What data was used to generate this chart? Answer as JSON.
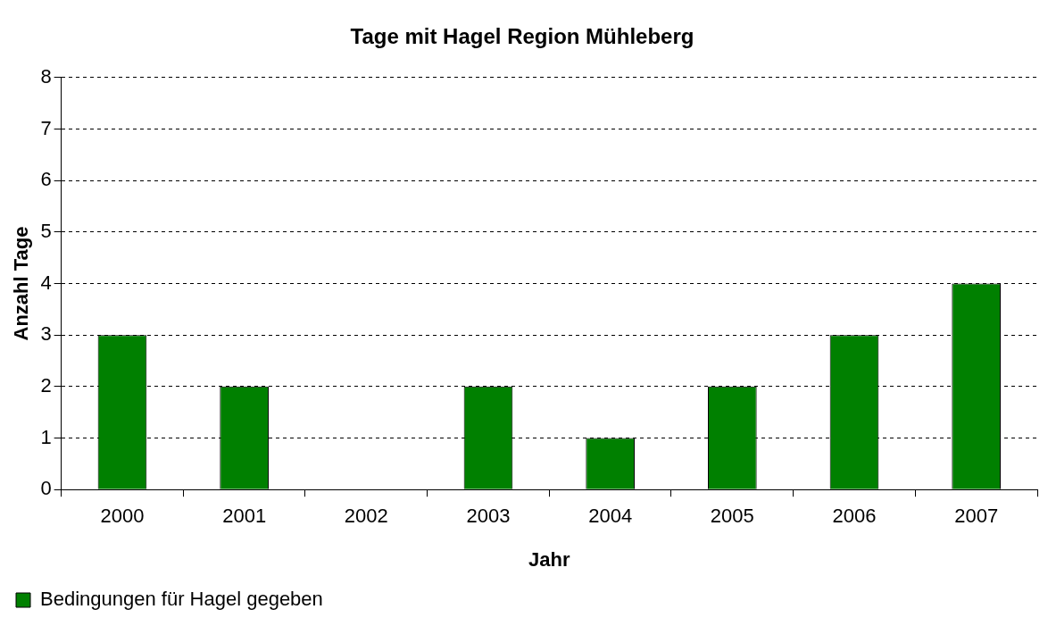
{
  "chart_data": {
    "type": "bar",
    "title": "Tage mit Hagel Region Mühleberg",
    "xlabel": "Jahr",
    "ylabel": "Anzahl Tage",
    "categories": [
      "2000",
      "2001",
      "2002",
      "2003",
      "2004",
      "2005",
      "2006",
      "2007"
    ],
    "series": [
      {
        "name": "Bedingungen für Hagel gegeben",
        "color": "#008000",
        "values": [
          3,
          2,
          0,
          2,
          1,
          2,
          3,
          4
        ]
      }
    ],
    "ylim": [
      0,
      8
    ],
    "yticks": [
      0,
      1,
      2,
      3,
      4,
      5,
      6,
      7,
      8
    ],
    "grid": "y",
    "legend": "bottom left"
  }
}
